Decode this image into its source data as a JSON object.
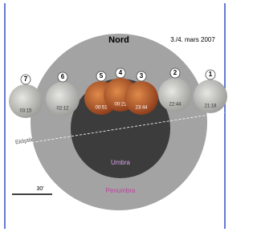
{
  "header": {
    "title": "Nord",
    "date": "3./4. mars 2007"
  },
  "moons": [
    {
      "number": "7",
      "time": "03:15"
    },
    {
      "number": "6",
      "time": "02:12"
    },
    {
      "number": "5",
      "time": "00:51"
    },
    {
      "number": "4",
      "time": "00:21"
    },
    {
      "number": "3",
      "time": "23:44"
    },
    {
      "number": "2",
      "time": "22:44"
    },
    {
      "number": "1",
      "time": "21:18"
    }
  ],
  "labels": {
    "ecliptic": "Ekliptik",
    "umbra": "Umbra",
    "penumbra": "Penumbra",
    "scale": "30'"
  }
}
